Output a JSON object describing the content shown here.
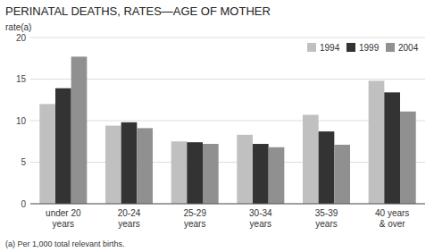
{
  "chart_data": {
    "type": "bar",
    "title": "PERINATAL DEATHS, RATES—AGE OF MOTHER",
    "y_label": "rate(a)",
    "annotations": [
      "(a) Per 1,000 total relevant births."
    ],
    "categories": [
      "under 20\nyears",
      "20-24\nyears",
      "25-29\nyears",
      "30-34\nyears",
      "35-39\nyears",
      "40 years\n& over"
    ],
    "series": [
      {
        "name": "1994",
        "color": "#c0c0c0",
        "values": [
          12.0,
          9.4,
          7.5,
          8.3,
          10.7,
          14.8
        ]
      },
      {
        "name": "1999",
        "color": "#333333",
        "values": [
          13.9,
          9.8,
          7.4,
          7.2,
          8.7,
          13.4
        ]
      },
      {
        "name": "2004",
        "color": "#909090",
        "values": [
          17.7,
          9.1,
          7.2,
          6.8,
          7.1,
          11.1
        ]
      }
    ],
    "ylim": [
      0,
      20
    ],
    "yticks": [
      0,
      5,
      10,
      15,
      20
    ],
    "grid": true,
    "legend": "upper right"
  }
}
